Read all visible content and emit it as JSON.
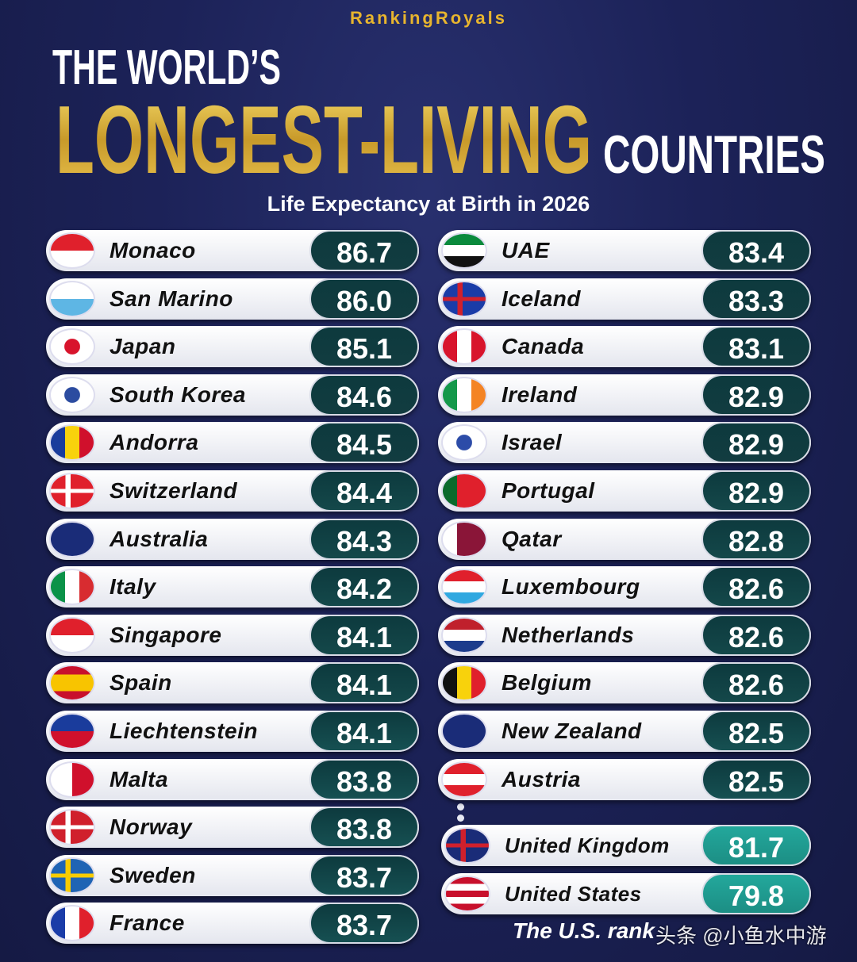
{
  "brand": "RankingRoyals",
  "title": {
    "line1": "THE WORLD’S",
    "highlight": "LONGEST-LIVING",
    "line2": "COUNTRIES"
  },
  "subtitle": "Life Expectancy at Birth in 2026",
  "left": [
    {
      "country": "Monaco",
      "value": "86.7"
    },
    {
      "country": "San Marino",
      "value": "86.0"
    },
    {
      "country": "Japan",
      "value": "85.1"
    },
    {
      "country": "South Korea",
      "value": "84.6"
    },
    {
      "country": "Andorra",
      "value": "84.5"
    },
    {
      "country": "Switzerland",
      "value": "84.4"
    },
    {
      "country": "Australia",
      "value": "84.3"
    },
    {
      "country": "Italy",
      "value": "84.2"
    },
    {
      "country": "Singapore",
      "value": "84.1"
    },
    {
      "country": "Spain",
      "value": "84.1"
    },
    {
      "country": "Liechtenstein",
      "value": "84.1"
    },
    {
      "country": "Malta",
      "value": "83.8"
    },
    {
      "country": "Norway",
      "value": "83.8"
    },
    {
      "country": "Sweden",
      "value": "83.7"
    },
    {
      "country": "France",
      "value": "83.7"
    }
  ],
  "right": [
    {
      "country": "UAE",
      "value": "83.4"
    },
    {
      "country": "Iceland",
      "value": "83.3"
    },
    {
      "country": "Canada",
      "value": "83.1"
    },
    {
      "country": "Ireland",
      "value": "82.9"
    },
    {
      "country": "Israel",
      "value": "82.9"
    },
    {
      "country": "Portugal",
      "value": "82.9"
    },
    {
      "country": "Qatar",
      "value": "82.8"
    },
    {
      "country": "Luxembourg",
      "value": "82.6"
    },
    {
      "country": "Netherlands",
      "value": "82.6"
    },
    {
      "country": "Belgium",
      "value": "82.6"
    },
    {
      "country": "New Zealand",
      "value": "82.5"
    },
    {
      "country": "Austria",
      "value": "82.5"
    }
  ],
  "others": [
    {
      "country": "United Kingdom",
      "value": "81.7"
    },
    {
      "country": "United States",
      "value": "79.8"
    }
  ],
  "footnote": "The U.S. rank",
  "watermark": "头条 @小鱼水中游"
}
